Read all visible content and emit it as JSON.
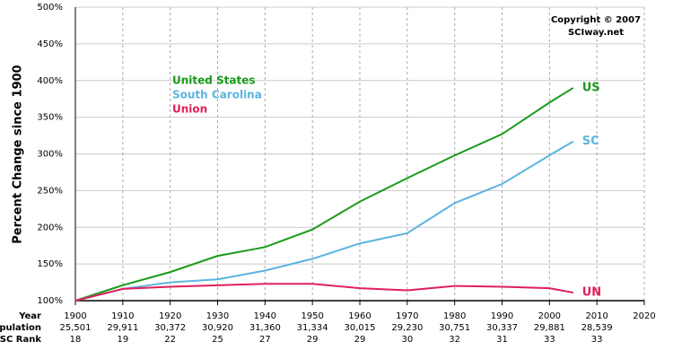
{
  "chart_data": {
    "type": "line",
    "ylabel": "Percent Change since 1900",
    "annotations": [
      "Copyright © 2007",
      "SCIway.net"
    ],
    "x": [
      1900,
      1910,
      1920,
      1930,
      1940,
      1950,
      1960,
      1970,
      1980,
      1990,
      2000,
      2005
    ],
    "series": [
      {
        "name": "United States",
        "end_label": "US",
        "color": "#1a9a1a",
        "values": [
          100,
          121,
          139,
          161,
          173,
          197,
          235,
          267,
          298,
          327,
          370,
          390
        ]
      },
      {
        "name": "South Carolina",
        "end_label": "SC",
        "color": "#5ab4e0",
        "values": [
          100,
          116,
          125,
          129,
          141,
          157,
          178,
          192,
          233,
          259,
          298,
          317
        ]
      },
      {
        "name": "Union",
        "end_label": "UN",
        "color": "#e0205a",
        "values": [
          100,
          116,
          119,
          121,
          123,
          123,
          117,
          114,
          120,
          119,
          117,
          111
        ]
      }
    ],
    "xlim": [
      1900,
      2020
    ],
    "xticks": [
      1900,
      1910,
      1920,
      1930,
      1940,
      1950,
      1960,
      1970,
      1980,
      1990,
      2000,
      2010,
      2020
    ],
    "xlabel": "Year",
    "ylim": [
      100,
      500
    ],
    "yticks": [
      {
        "value": 100,
        "label": "100%"
      },
      {
        "value": 150,
        "label": "150%"
      },
      {
        "value": 200,
        "label": "200%"
      },
      {
        "value": 250,
        "label": "250%"
      },
      {
        "value": 300,
        "label": "300%"
      },
      {
        "value": 350,
        "label": "350%"
      },
      {
        "value": 400,
        "label": "400%"
      },
      {
        "value": 450,
        "label": "450%"
      },
      {
        "value": 500,
        "label": "500%"
      }
    ],
    "grid": true,
    "rows": [
      {
        "label": "Population",
        "values": [
          "25,501",
          "29,911",
          "30,372",
          "30,920",
          "31,360",
          "31,334",
          "30,015",
          "29,230",
          "30,751",
          "30,337",
          "29,881",
          "28,539"
        ]
      },
      {
        "label": "SC Rank",
        "values": [
          18,
          19,
          22,
          25,
          27,
          29,
          29,
          30,
          32,
          31,
          33,
          33
        ]
      }
    ]
  }
}
